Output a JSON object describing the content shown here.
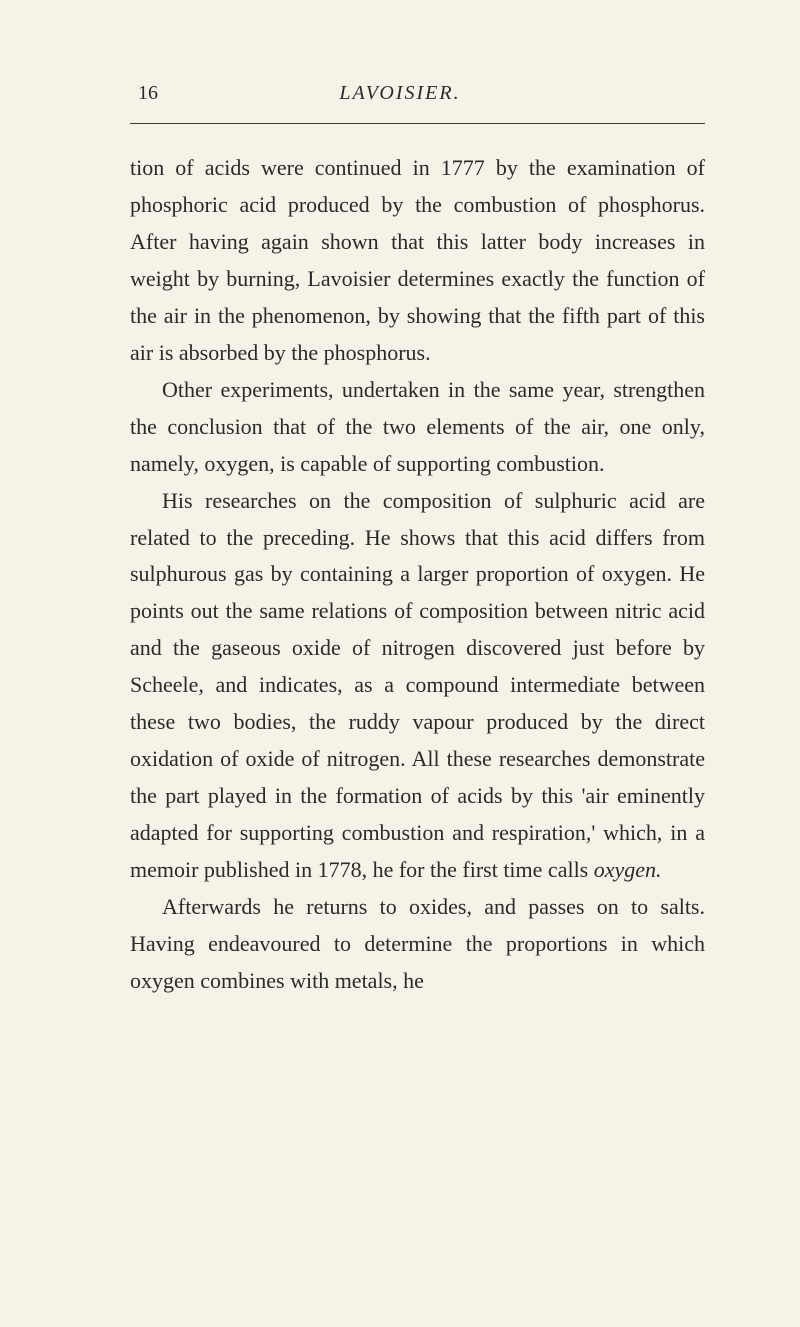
{
  "page": {
    "number": "16",
    "header": "LAVOISIER.",
    "paragraphs": [
      {
        "indented": false,
        "text": "tion of acids were continued in 1777 by the examination of phosphoric acid produced by the combustion of phosphorus. After having again shown that this latter body increases in weight by burning, Lavoisier determines exactly the function of the air in the phenomenon, by showing that the fifth part of this air is absorbed by the phosphorus."
      },
      {
        "indented": true,
        "text": "Other experiments, undertaken in the same year, strengthen the conclusion that of the two elements of the air, one only, namely, oxygen, is capable of supporting combustion."
      },
      {
        "indented": true,
        "text_parts": [
          {
            "text": "His researches on the composition of sulphuric acid are related to the preceding. He shows that this acid differs from sulphurous gas by containing a larger proportion of oxygen. He points out the same relations of composition between nitric acid and the gaseous oxide of nitrogen discovered just before by Scheele, and indicates, as a compound intermediate between these two bodies, the ruddy vapour produced by the direct oxidation of oxide of nitrogen. All these researches demonstrate the part played in the formation of acids by this 'air eminently adapted for supporting combustion and respiration,' which, in a memoir published in 1778, he for the first time calls ",
            "italic": false
          },
          {
            "text": "oxygen.",
            "italic": true
          }
        ]
      },
      {
        "indented": true,
        "text": "Afterwards he returns to oxides, and passes on to salts. Having endeavoured to determine the proportions in which oxygen combines with metals, he"
      }
    ]
  },
  "colors": {
    "background": "#f5f2e8",
    "text": "#2a2a28",
    "divider": "#3a3a35"
  },
  "typography": {
    "body_fontsize": 22,
    "header_fontsize": 20,
    "line_height": 1.68,
    "font_family": "Georgia, Times New Roman, serif"
  }
}
